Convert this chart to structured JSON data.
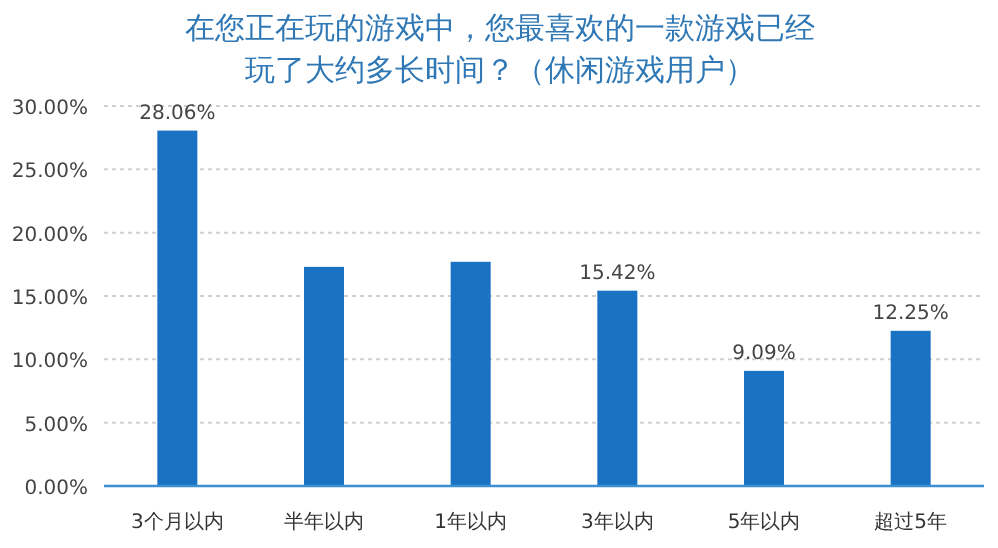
{
  "chart_data": {
    "type": "bar",
    "title": "在您正在玩的游戏中，您最喜欢的一款游戏已经玩了大约多长时间？（休闲游戏用户）",
    "categories": [
      "3个月以内",
      "半年以内",
      "1年以内",
      "3年以内",
      "5年以内",
      "超过5年"
    ],
    "values": [
      28.06,
      17.3,
      17.7,
      15.42,
      9.09,
      12.25
    ],
    "value_labels": [
      "28.06%",
      null,
      null,
      "15.42%",
      "9.09%",
      "12.25%"
    ],
    "color": "#1a73c2",
    "ylim": [
      0,
      30
    ],
    "yticks": [
      {
        "value": 0,
        "label": "0.00%"
      },
      {
        "value": 5,
        "label": "5.00%"
      },
      {
        "value": 10,
        "label": "10.00%"
      },
      {
        "value": 15,
        "label": "15.00%"
      },
      {
        "value": 20,
        "label": "20.00%"
      },
      {
        "value": 25,
        "label": "25.00%"
      },
      {
        "value": 30,
        "label": "30.00%"
      }
    ],
    "grid": "y"
  }
}
